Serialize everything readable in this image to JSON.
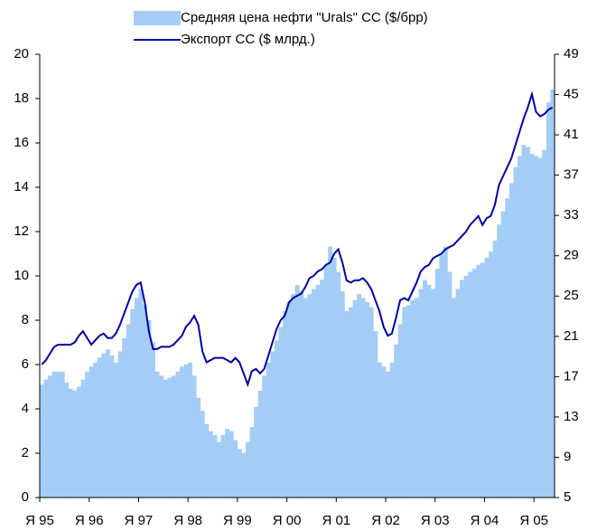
{
  "chart_data": {
    "type": "bar_line",
    "categories": [
      "Я 95",
      null,
      null,
      null,
      null,
      null,
      null,
      null,
      null,
      null,
      null,
      null,
      "Я 96",
      null,
      null,
      null,
      null,
      null,
      null,
      null,
      null,
      null,
      null,
      null,
      "Я 97",
      null,
      null,
      null,
      null,
      null,
      null,
      null,
      null,
      null,
      null,
      null,
      "Я 98",
      null,
      null,
      null,
      null,
      null,
      null,
      null,
      null,
      null,
      null,
      null,
      "Я 99",
      null,
      null,
      null,
      null,
      null,
      null,
      null,
      null,
      null,
      null,
      null,
      "Я 00",
      null,
      null,
      null,
      null,
      null,
      null,
      null,
      null,
      null,
      null,
      null,
      "Я 01",
      null,
      null,
      null,
      null,
      null,
      null,
      null,
      null,
      null,
      null,
      null,
      "Я 02",
      null,
      null,
      null,
      null,
      null,
      null,
      null,
      null,
      null,
      null,
      null,
      "Я 03",
      null,
      null,
      null,
      null,
      null,
      null,
      null,
      null,
      null,
      null,
      null,
      "Я 04",
      null,
      null,
      null,
      null,
      null,
      null,
      null,
      null,
      null,
      null,
      null,
      "Я 05",
      null,
      null,
      null,
      null
    ],
    "series": [
      {
        "name": "Средняя цена нефти \"Urals\" СС ($/брр)",
        "color": "#a3cdf7",
        "kind": "bar",
        "axis": "y2",
        "values": [
          16.2,
          16.7,
          17.1,
          17.5,
          17.5,
          17.5,
          16.4,
          15.8,
          15.6,
          16.0,
          16.7,
          17.5,
          18.0,
          18.4,
          18.9,
          19.3,
          19.7,
          19.1,
          18.4,
          19.5,
          20.8,
          22.2,
          23.7,
          24.8,
          25.7,
          24.1,
          22.6,
          20.4,
          17.5,
          17.1,
          16.7,
          16.9,
          17.1,
          17.5,
          18.0,
          18.2,
          18.4,
          17.1,
          14.9,
          13.6,
          12.3,
          11.6,
          11.2,
          10.5,
          11.2,
          11.8,
          11.6,
          10.7,
          9.8,
          9.4,
          10.5,
          12.0,
          14.0,
          15.6,
          17.1,
          18.4,
          19.5,
          20.6,
          21.9,
          23.5,
          24.4,
          25.2,
          26.1,
          25.5,
          24.8,
          25.2,
          25.7,
          26.1,
          26.6,
          28.1,
          29.9,
          28.8,
          27.4,
          25.5,
          23.5,
          23.9,
          24.6,
          25.2,
          24.8,
          24.4,
          23.9,
          21.5,
          18.4,
          18.0,
          17.5,
          18.4,
          20.2,
          22.2,
          23.9,
          24.1,
          24.6,
          24.8,
          25.7,
          26.6,
          26.1,
          25.7,
          27.7,
          29.2,
          29.9,
          27.4,
          24.8,
          25.7,
          26.6,
          27.0,
          27.4,
          27.7,
          28.1,
          28.3,
          28.8,
          29.4,
          30.5,
          32.1,
          33.4,
          34.7,
          36.2,
          37.8,
          38.9,
          40.0,
          39.8,
          39.1,
          38.9,
          38.7,
          39.5,
          44.2,
          45.5
        ]
      },
      {
        "name": "Экспорт СС ($ млрд.)",
        "color": "#0000a8",
        "kind": "line",
        "values": [
          6.0,
          6.2,
          6.5,
          6.8,
          6.9,
          6.9,
          6.9,
          6.9,
          7.0,
          7.3,
          7.5,
          7.2,
          6.9,
          7.1,
          7.3,
          7.4,
          7.2,
          7.2,
          7.4,
          7.8,
          8.3,
          8.8,
          9.3,
          9.6,
          9.7,
          8.8,
          7.5,
          6.7,
          6.7,
          6.8,
          6.8,
          6.8,
          6.9,
          7.1,
          7.3,
          7.7,
          7.9,
          8.2,
          7.8,
          6.6,
          6.1,
          6.2,
          6.3,
          6.3,
          6.3,
          6.2,
          6.1,
          6.3,
          6.1,
          5.6,
          5.1,
          5.7,
          5.8,
          5.6,
          5.8,
          6.4,
          7.0,
          7.6,
          8.0,
          8.2,
          8.8,
          9.0,
          9.1,
          9.2,
          9.5,
          9.9,
          10.0,
          10.2,
          10.3,
          10.5,
          10.6,
          11.0,
          11.2,
          10.6,
          9.8,
          9.7,
          9.8,
          9.8,
          9.9,
          9.7,
          9.4,
          8.9,
          8.4,
          7.7,
          7.3,
          7.4,
          8.1,
          8.9,
          9.0,
          8.9,
          9.3,
          9.7,
          10.2,
          10.4,
          10.5,
          10.8,
          10.9,
          11.0,
          11.2,
          11.3,
          11.4,
          11.6,
          11.8,
          12.0,
          12.3,
          12.5,
          12.7,
          12.3,
          12.6,
          12.7,
          13.2,
          14.1,
          14.5,
          14.9,
          15.3,
          15.9,
          16.5,
          17.1,
          17.6,
          18.2,
          17.4,
          17.2,
          17.3,
          17.5,
          17.6
        ]
      }
    ],
    "ylim": [
      0,
      20
    ],
    "yticks": [
      0,
      2,
      4,
      6,
      8,
      10,
      12,
      14,
      16,
      18,
      20
    ],
    "y2lim": [
      5,
      49
    ],
    "y2ticks": [
      5,
      9,
      13,
      17,
      21,
      25,
      29,
      33,
      37,
      41,
      45,
      49
    ],
    "grid": false,
    "legend": "top"
  }
}
